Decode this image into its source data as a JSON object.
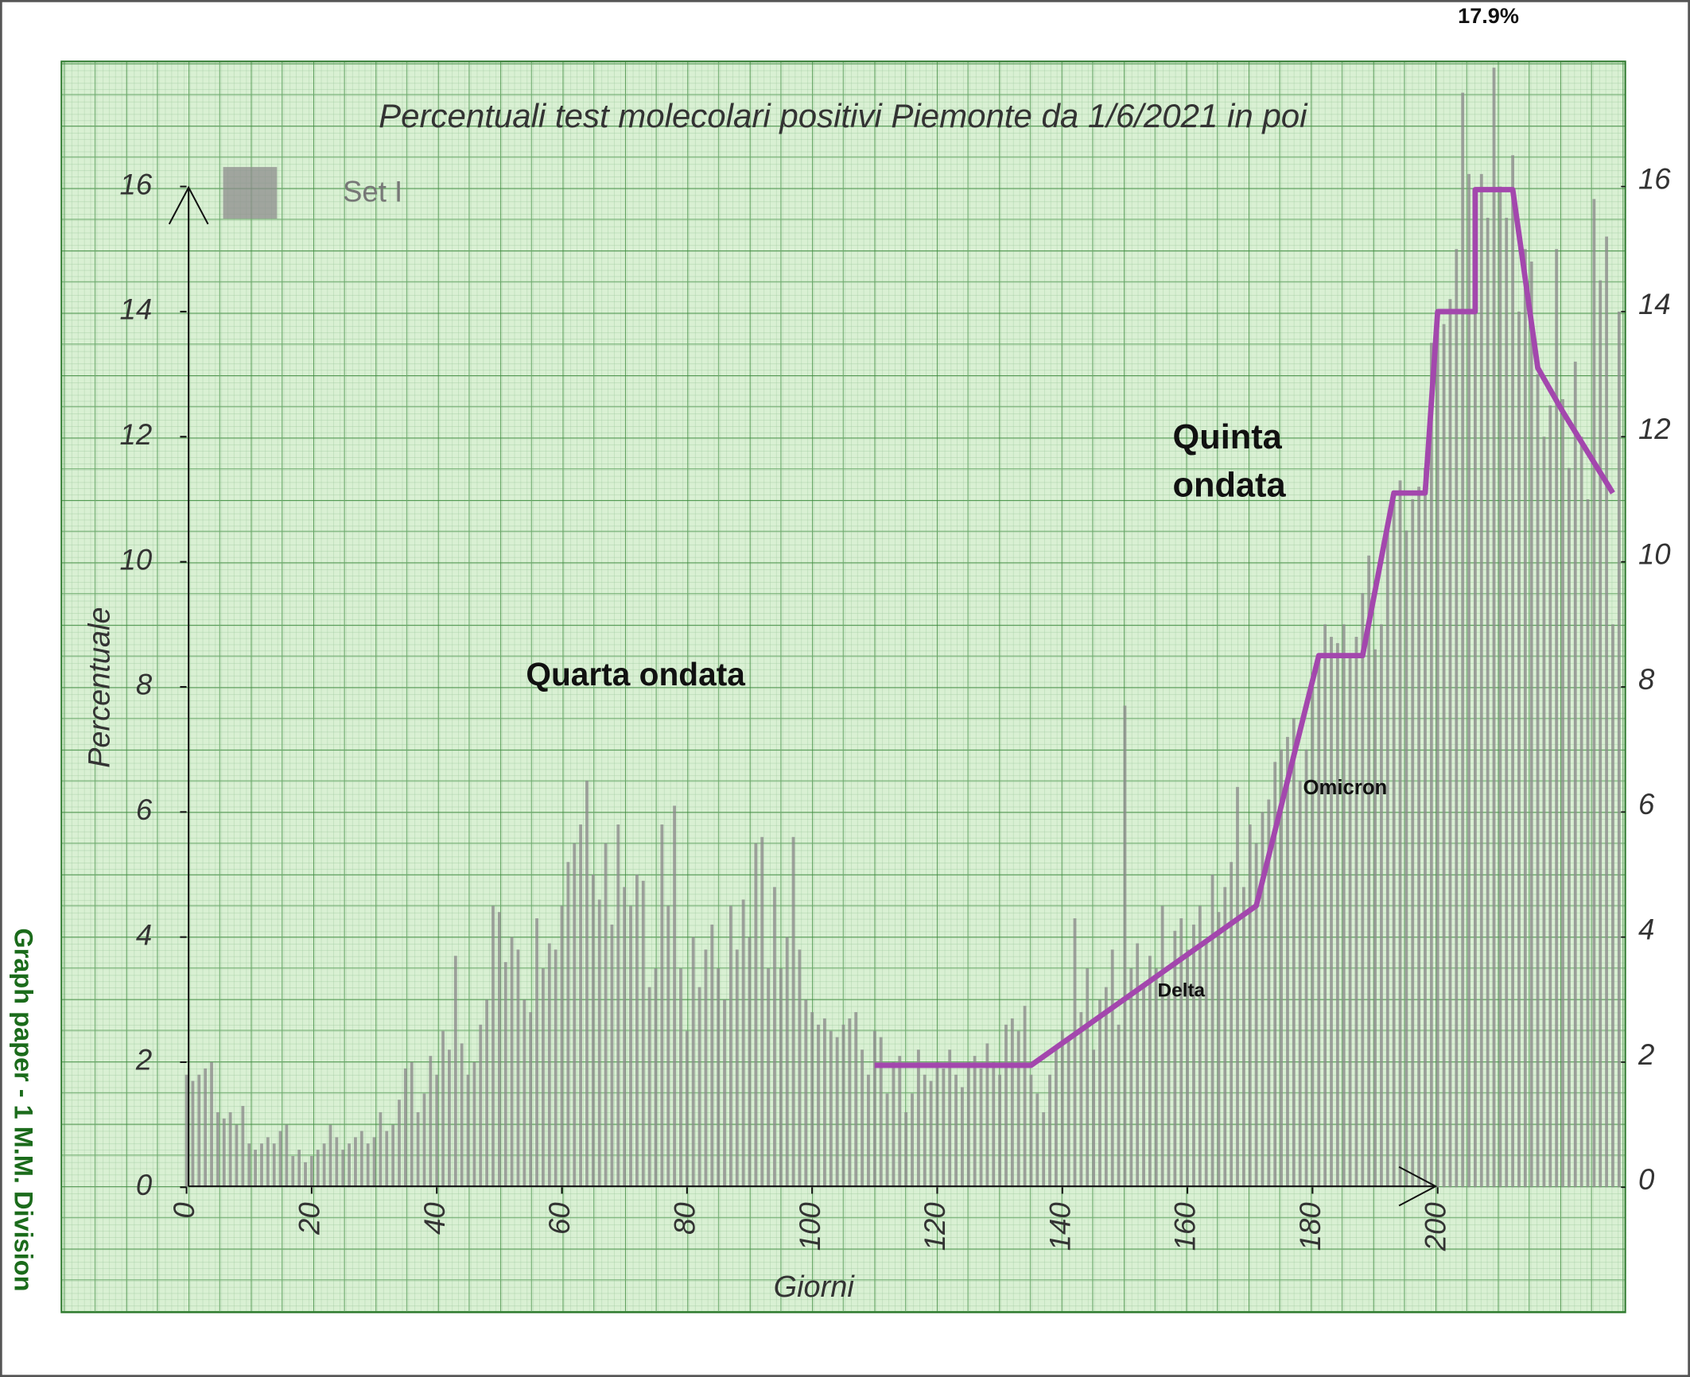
{
  "chart_data": {
    "type": "bar",
    "title": "Percentuali test molecolari positivi Piemonte da 1/6/2021 in poi",
    "x_label": "Giorni",
    "y_label": "Percentuale",
    "side_text": "Graph paper - 1 M.M. Division",
    "annotations": [
      "Quarta ondata",
      "Quinta ondata",
      "Delta",
      "Omicron",
      "17.9%"
    ],
    "xlim": [
      -20,
      230
    ],
    "xticks": [
      0,
      20,
      40,
      60,
      80,
      100,
      120,
      140,
      160,
      180,
      200
    ],
    "ylim": [
      -2,
      18
    ],
    "yticks": [
      0,
      2,
      4,
      6,
      8,
      10,
      12,
      14,
      16
    ],
    "y2lim": [
      -2,
      18
    ],
    "y2ticks": [
      0,
      2,
      4,
      6,
      8,
      10,
      12,
      14,
      16
    ],
    "legend": "top-left",
    "series": [
      {
        "name": "Set I",
        "type": "bar",
        "color": "#8c8c8c",
        "values": [
          1.8,
          1.7,
          1.8,
          1.9,
          2.0,
          1.2,
          1.1,
          1.2,
          1.0,
          1.3,
          0.7,
          0.6,
          0.7,
          0.8,
          0.7,
          0.9,
          1.0,
          0.5,
          0.6,
          0.4,
          0.5,
          0.6,
          0.7,
          1.0,
          0.8,
          0.6,
          0.7,
          0.8,
          0.9,
          0.7,
          0.8,
          1.2,
          0.9,
          1.0,
          1.4,
          1.9,
          2.0,
          1.2,
          1.5,
          2.1,
          1.8,
          2.5,
          2.2,
          3.7,
          2.3,
          1.8,
          2.0,
          2.6,
          3.0,
          4.5,
          4.4,
          3.6,
          4.0,
          3.8,
          3.0,
          2.8,
          4.3,
          3.5,
          3.9,
          3.8,
          4.5,
          5.2,
          5.5,
          5.8,
          6.5,
          5.0,
          4.6,
          5.5,
          4.2,
          5.8,
          4.8,
          4.5,
          5.0,
          4.9,
          3.2,
          3.5,
          5.8,
          4.5,
          6.1,
          3.5,
          2.5,
          4.0,
          3.2,
          3.8,
          4.2,
          3.5,
          3.0,
          4.5,
          3.8,
          4.6,
          4.0,
          5.5,
          5.6,
          3.5,
          4.8,
          3.5,
          4.0,
          5.6,
          3.8,
          3.0,
          2.8,
          2.6,
          2.7,
          2.5,
          2.4,
          2.6,
          2.7,
          2.8,
          2.2,
          1.8,
          2.5,
          2.4,
          1.5,
          2.0,
          2.1,
          1.2,
          1.5,
          2.2,
          1.8,
          1.7,
          2.0,
          1.9,
          2.2,
          1.8,
          1.6,
          2.0,
          2.1,
          1.9,
          2.3,
          2.0,
          1.8,
          2.6,
          2.7,
          2.5,
          2.9,
          1.8,
          1.5,
          1.2,
          1.8,
          2.2,
          2.5,
          2.4,
          4.3,
          2.8,
          3.5,
          2.2,
          3.0,
          3.2,
          3.8,
          2.6,
          7.7,
          3.5,
          3.9,
          3.2,
          3.7,
          3.5,
          4.5,
          3.2,
          4.1,
          4.3,
          3.8,
          4.2,
          4.5,
          3.9,
          5.0,
          4.4,
          4.8,
          5.2,
          6.4,
          4.8,
          5.8,
          5.5,
          6.0,
          6.2,
          6.8,
          7.0,
          7.2,
          7.5,
          6.5,
          7.0,
          8.0,
          8.5,
          9.0,
          8.8,
          8.7,
          9.0,
          8.5,
          8.8,
          9.5,
          10.1,
          8.6,
          9.0,
          10.5,
          11.0,
          11.3,
          10.5,
          11.0,
          11.2,
          11.5,
          13.5,
          14.0,
          13.8,
          14.2,
          15.0,
          17.5,
          16.2,
          14.2,
          16.2,
          15.5,
          17.9,
          16.0,
          15.5,
          16.5,
          14.0,
          15.0,
          14.8,
          13.0,
          12.0,
          12.5,
          15.0,
          12.6,
          11.5,
          13.2,
          12.0,
          11.0,
          15.8,
          14.5,
          15.2,
          9.0,
          14.0
        ]
      },
      {
        "type": "line",
        "color": "#a347ad",
        "x": [
          110,
          135,
          171,
          181,
          188,
          193,
          198,
          200,
          206,
          206,
          212,
          216,
          220,
          228
        ],
        "values": [
          1.95,
          1.95,
          4.5,
          8.5,
          8.5,
          11.1,
          11.1,
          14,
          14,
          15.95,
          15.95,
          13.1,
          12.4,
          11.1
        ]
      }
    ]
  }
}
